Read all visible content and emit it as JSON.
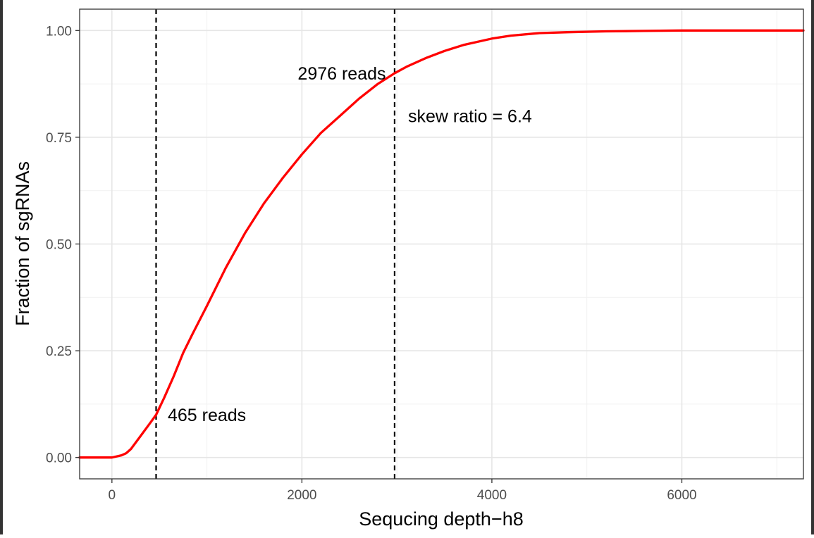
{
  "chart_data": {
    "type": "line",
    "title": "",
    "xlabel": "Sequcing depth−h8",
    "ylabel": "Fraction of sgRNAs",
    "xlim": [
      -340,
      7280
    ],
    "ylim": [
      -0.05,
      1.05
    ],
    "x_ticks": [
      0,
      2000,
      4000,
      6000
    ],
    "x_tick_labels": [
      "0",
      "2000",
      "4000",
      "6000"
    ],
    "y_ticks": [
      0,
      0.25,
      0.5,
      0.75,
      1
    ],
    "y_tick_labels": [
      "0.00",
      "0.25",
      "0.50",
      "0.75",
      "1.00"
    ],
    "grid": true,
    "legend": "none",
    "series": [
      {
        "color": "#ff0000",
        "x": [
          -340,
          0,
          100,
          150,
          200,
          300,
          400,
          465,
          550,
          650,
          750,
          850,
          1000,
          1200,
          1400,
          1600,
          1800,
          2000,
          2200,
          2400,
          2600,
          2800,
          2976,
          3100,
          3300,
          3500,
          3700,
          4000,
          4200,
          4500,
          4800,
          5200,
          5600,
          6000,
          7280
        ],
        "y": [
          0,
          0,
          0.005,
          0.01,
          0.02,
          0.05,
          0.08,
          0.1,
          0.14,
          0.19,
          0.245,
          0.29,
          0.355,
          0.445,
          0.525,
          0.595,
          0.655,
          0.71,
          0.76,
          0.8,
          0.84,
          0.875,
          0.9,
          0.915,
          0.935,
          0.952,
          0.966,
          0.981,
          0.988,
          0.994,
          0.996,
          0.998,
          0.999,
          1,
          1
        ]
      }
    ],
    "vlines": [
      465,
      2976
    ],
    "annotations": [
      {
        "text": "465 reads",
        "x": 1000,
        "y": 0.1
      },
      {
        "text": "2976 reads",
        "x": 2420,
        "y": 0.9
      },
      {
        "text": "skew ratio = 6.4",
        "x": 3770,
        "y": 0.8
      }
    ]
  }
}
